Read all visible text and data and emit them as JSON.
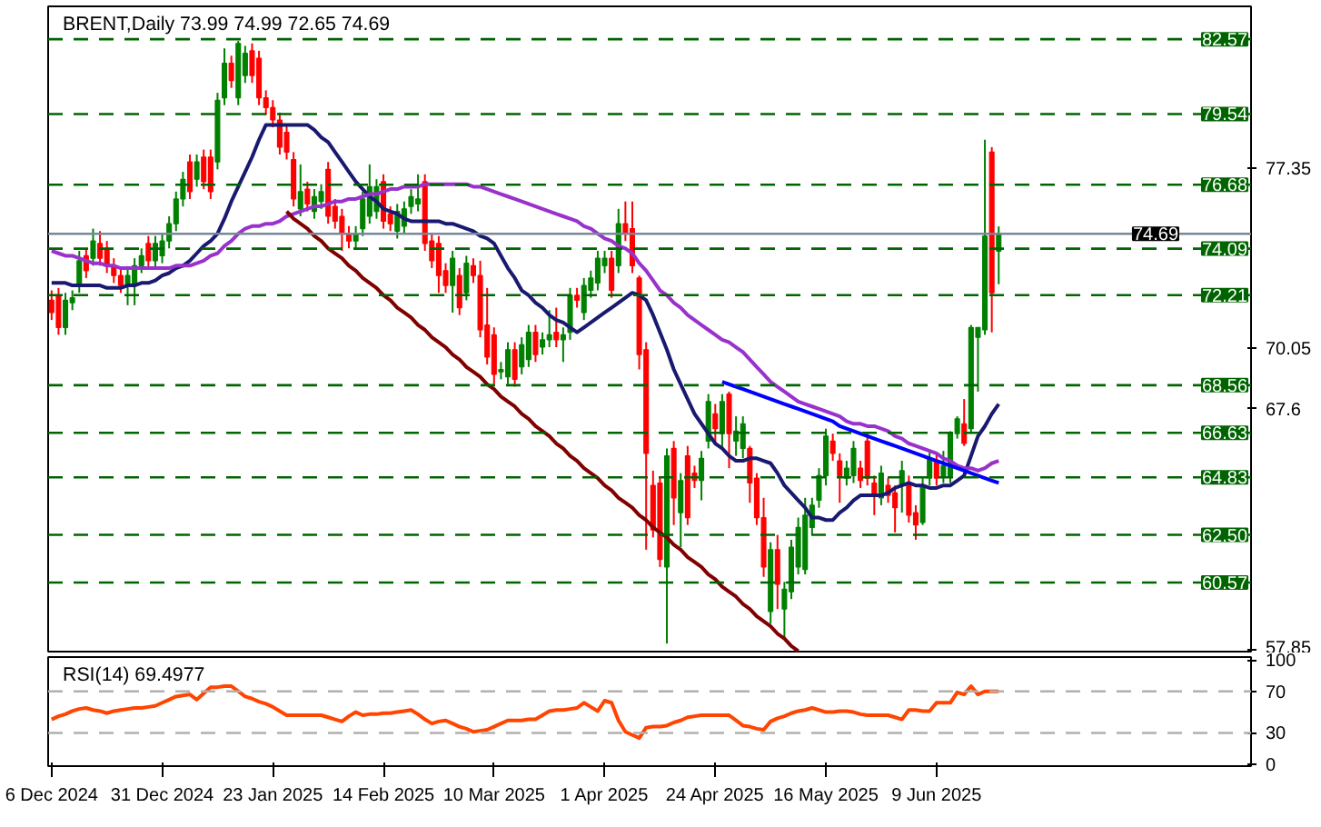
{
  "chart_data": [
    {
      "type": "candlestick",
      "title": "BRENT,Daily  73.99 74.99 72.65 74.69",
      "categories": [
        null,
        null,
        null,
        null,
        null,
        null,
        null,
        null,
        null,
        null,
        null,
        null,
        null,
        null,
        null,
        null,
        null,
        null,
        null,
        null,
        null,
        null,
        null,
        null,
        null,
        null,
        null,
        null,
        null,
        null,
        null,
        null,
        null,
        null,
        null,
        null,
        null,
        null,
        null,
        null,
        null,
        null,
        null,
        null,
        null,
        null,
        null,
        null,
        null,
        null,
        null,
        null,
        null,
        null,
        null,
        null,
        null,
        null,
        null,
        null,
        null,
        null,
        null,
        null,
        null,
        null,
        null,
        null,
        null,
        null,
        null,
        null,
        null,
        null,
        null,
        null,
        null,
        null,
        null,
        null,
        null,
        null,
        null,
        null,
        null,
        null,
        null,
        null,
        null,
        null,
        null,
        null,
        null,
        null,
        null,
        null,
        null,
        null,
        null,
        null,
        null,
        null,
        null,
        null,
        null,
        null,
        null,
        null,
        null,
        null,
        null,
        null,
        null,
        null,
        null,
        null,
        null,
        null,
        null,
        null,
        null,
        null,
        null,
        null,
        null,
        null,
        null,
        null,
        null,
        null,
        null,
        null,
        null,
        null,
        null,
        null,
        null,
        null
      ],
      "ohlc": [
        [
          72.0,
          72.4,
          71.2,
          71.5
        ],
        [
          72.2,
          72.5,
          70.6,
          70.9
        ],
        [
          70.9,
          72.3,
          70.6,
          72.0
        ],
        [
          71.9,
          72.4,
          71.6,
          72.1
        ],
        [
          72.6,
          74.0,
          72.3,
          73.6
        ],
        [
          73.8,
          74.1,
          72.9,
          73.2
        ],
        [
          73.7,
          74.9,
          73.4,
          74.4
        ],
        [
          74.3,
          74.8,
          73.4,
          73.7
        ],
        [
          74.1,
          74.4,
          73.1,
          73.4
        ],
        [
          73.4,
          73.7,
          72.7,
          73.0
        ],
        [
          73.0,
          73.3,
          72.3,
          72.6
        ],
        [
          72.6,
          73.3,
          71.8,
          73.0
        ],
        [
          72.6,
          73.7,
          71.8,
          73.4
        ],
        [
          73.4,
          74.1,
          73.1,
          73.8
        ],
        [
          74.3,
          74.6,
          73.3,
          73.6
        ],
        [
          73.6,
          74.6,
          73.3,
          74.3
        ],
        [
          73.8,
          74.7,
          73.5,
          74.4
        ],
        [
          74.4,
          75.4,
          74.1,
          75.1
        ],
        [
          75.1,
          76.4,
          74.8,
          76.1
        ],
        [
          76.1,
          77.2,
          75.8,
          76.9
        ],
        [
          77.6,
          77.9,
          76.1,
          76.4
        ],
        [
          76.9,
          77.9,
          76.6,
          77.6
        ],
        [
          77.8,
          78.1,
          76.5,
          76.8
        ],
        [
          77.8,
          78.1,
          76.1,
          76.4
        ],
        [
          77.6,
          80.4,
          77.3,
          80.1
        ],
        [
          80.2,
          82.2,
          79.9,
          81.6
        ],
        [
          81.6,
          81.9,
          80.6,
          80.9
        ],
        [
          80.2,
          82.5,
          79.9,
          82.4
        ],
        [
          81.1,
          82.3,
          80.8,
          82.0
        ],
        [
          82.1,
          82.4,
          80.8,
          81.1
        ],
        [
          81.8,
          82.1,
          79.9,
          80.2
        ],
        [
          80.2,
          80.5,
          79.5,
          79.8
        ],
        [
          79.8,
          80.1,
          79.0,
          79.3
        ],
        [
          79.3,
          79.6,
          77.9,
          78.2
        ],
        [
          78.8,
          79.1,
          77.7,
          78.0
        ],
        [
          77.7,
          78.0,
          75.8,
          76.1
        ],
        [
          75.7,
          77.5,
          75.4,
          76.4
        ],
        [
          76.5,
          76.8,
          75.6,
          75.9
        ],
        [
          75.6,
          76.5,
          75.3,
          76.2
        ],
        [
          76.0,
          76.7,
          75.7,
          76.4
        ],
        [
          77.3,
          77.6,
          75.1,
          75.4
        ],
        [
          75.8,
          76.1,
          74.9,
          75.2
        ],
        [
          75.4,
          75.7,
          74.0,
          74.7
        ],
        [
          74.7,
          75.0,
          74.1,
          74.4
        ],
        [
          74.4,
          75.0,
          74.1,
          74.7
        ],
        [
          74.9,
          76.4,
          74.6,
          76.1
        ],
        [
          75.4,
          77.5,
          75.1,
          76.6
        ],
        [
          75.6,
          76.9,
          75.3,
          76.6
        ],
        [
          76.8,
          77.1,
          74.9,
          75.2
        ],
        [
          75.5,
          75.8,
          74.8,
          75.1
        ],
        [
          74.8,
          75.9,
          74.5,
          75.6
        ],
        [
          75.0,
          76.0,
          74.7,
          75.7
        ],
        [
          75.8,
          76.5,
          75.5,
          76.2
        ],
        [
          75.9,
          77.1,
          75.6,
          76.1
        ],
        [
          76.8,
          77.1,
          74.0,
          74.3
        ],
        [
          74.4,
          74.7,
          73.3,
          73.6
        ],
        [
          74.3,
          74.6,
          72.3,
          73.0
        ],
        [
          73.2,
          73.5,
          72.3,
          72.6
        ],
        [
          72.6,
          74.0,
          71.5,
          73.7
        ],
        [
          73.0,
          73.3,
          71.4,
          71.7
        ],
        [
          72.3,
          73.8,
          72.0,
          73.5
        ],
        [
          73.4,
          73.7,
          72.7,
          73.0
        ],
        [
          73.0,
          73.6,
          70.5,
          70.8
        ],
        [
          71.0,
          72.5,
          69.4,
          69.7
        ],
        [
          70.6,
          70.9,
          68.6,
          69.0
        ],
        [
          69.1,
          69.5,
          68.8,
          69.2
        ],
        [
          68.9,
          70.3,
          68.6,
          70.0
        ],
        [
          70.0,
          70.3,
          68.5,
          68.8
        ],
        [
          69.3,
          70.5,
          69.0,
          70.2
        ],
        [
          69.6,
          71.0,
          69.3,
          70.7
        ],
        [
          70.7,
          71.0,
          69.5,
          69.8
        ],
        [
          70.1,
          70.7,
          69.8,
          70.4
        ],
        [
          70.4,
          71.6,
          70.1,
          70.6
        ],
        [
          70.7,
          71.7,
          70.1,
          70.4
        ],
        [
          70.4,
          70.9,
          69.5,
          70.6
        ],
        [
          70.7,
          72.5,
          70.4,
          72.2
        ],
        [
          72.2,
          72.5,
          71.7,
          72.0
        ],
        [
          71.5,
          72.9,
          71.2,
          72.6
        ],
        [
          72.4,
          73.2,
          72.1,
          72.9
        ],
        [
          72.7,
          74.0,
          72.4,
          73.7
        ],
        [
          73.4,
          74.0,
          73.1,
          73.7
        ],
        [
          73.7,
          74.0,
          72.1,
          72.4
        ],
        [
          73.4,
          75.7,
          73.1,
          75.1
        ],
        [
          75.1,
          76.0,
          74.4,
          74.7
        ],
        [
          74.9,
          76.0,
          73.1,
          73.4
        ],
        [
          72.9,
          73.0,
          69.2,
          69.8
        ],
        [
          70.0,
          70.3,
          61.9,
          65.8
        ],
        [
          64.5,
          65.1,
          62.4,
          62.7
        ],
        [
          64.6,
          64.8,
          61.2,
          61.5
        ],
        [
          61.2,
          66.0,
          58.1,
          65.7
        ],
        [
          66.0,
          66.3,
          62.9,
          64.0
        ],
        [
          63.4,
          65.0,
          62.0,
          64.7
        ],
        [
          65.7,
          66.1,
          62.9,
          63.2
        ],
        [
          65.0,
          65.3,
          64.4,
          64.7
        ],
        [
          64.7,
          65.9,
          63.9,
          65.6
        ],
        [
          66.3,
          68.2,
          66.0,
          67.9
        ],
        [
          67.4,
          67.8,
          66.2,
          66.8
        ],
        [
          66.6,
          68.2,
          66.0,
          67.9
        ],
        [
          68.2,
          68.3,
          65.2,
          66.6
        ],
        [
          66.3,
          67.3,
          65.7,
          66.7
        ],
        [
          66.0,
          67.3,
          65.6,
          67.0
        ],
        [
          66.0,
          66.1,
          63.8,
          64.6
        ],
        [
          64.8,
          65.0,
          62.9,
          63.2
        ],
        [
          63.2,
          64.0,
          60.8,
          61.2
        ],
        [
          59.4,
          62.2,
          58.9,
          61.9
        ],
        [
          61.9,
          62.5,
          59.5,
          60.5
        ],
        [
          59.5,
          60.6,
          58.3,
          60.3
        ],
        [
          60.2,
          62.3,
          59.9,
          62.0
        ],
        [
          61.2,
          63.2,
          60.9,
          62.8
        ],
        [
          61.1,
          64.0,
          60.9,
          63.3
        ],
        [
          62.8,
          64.0,
          62.5,
          63.7
        ],
        [
          63.9,
          65.2,
          63.6,
          64.9
        ],
        [
          64.9,
          66.8,
          64.5,
          66.5
        ],
        [
          66.3,
          66.6,
          65.5,
          65.8
        ],
        [
          65.5,
          65.8,
          63.8,
          64.9
        ],
        [
          64.8,
          65.5,
          64.5,
          65.2
        ],
        [
          64.9,
          66.3,
          64.6,
          66.0
        ],
        [
          65.2,
          65.5,
          64.4,
          64.7
        ],
        [
          66.3,
          66.6,
          64.5,
          64.8
        ],
        [
          64.6,
          64.9,
          63.3,
          64.1
        ],
        [
          64.0,
          65.3,
          63.7,
          65.0
        ],
        [
          64.5,
          64.8,
          63.8,
          64.1
        ],
        [
          64.2,
          64.5,
          62.6,
          63.6
        ],
        [
          64.5,
          65.5,
          63.4,
          65.1
        ],
        [
          64.6,
          64.9,
          63.0,
          63.3
        ],
        [
          63.4,
          63.7,
          62.3,
          62.9
        ],
        [
          63.0,
          64.8,
          62.9,
          64.5
        ],
        [
          64.8,
          65.9,
          64.5,
          65.6
        ],
        [
          65.5,
          65.8,
          64.5,
          64.8
        ],
        [
          64.9,
          65.9,
          64.6,
          65.3
        ],
        [
          64.9,
          66.7,
          64.6,
          66.6
        ],
        [
          66.6,
          67.3,
          66.4,
          67.2
        ],
        [
          67.0,
          68.0,
          66.1,
          66.2
        ],
        [
          66.8,
          71.0,
          66.6,
          70.9
        ],
        [
          70.5,
          70.9,
          68.3,
          70.9
        ],
        [
          70.8,
          78.5,
          70.6,
          74.6
        ],
        [
          78.0,
          78.2,
          70.7,
          72.3
        ],
        [
          73.99,
          74.99,
          72.65,
          74.69
        ]
      ],
      "series": [
        {
          "type": "line",
          "color": "#191970",
          "values": [
            72.7,
            72.7,
            72.7,
            72.6,
            72.6,
            72.6,
            72.6,
            72.6,
            72.5,
            72.5,
            72.5,
            72.6,
            72.6,
            72.7,
            72.7,
            72.8,
            73.0,
            73.1,
            73.3,
            73.4,
            73.6,
            73.9,
            74.2,
            74.4,
            74.7,
            75.3,
            76.0,
            76.6,
            77.2,
            77.8,
            78.5,
            79.1,
            79.1,
            79.1,
            79.1,
            79.1,
            79.1,
            79.1,
            78.9,
            78.6,
            78.4,
            78.0,
            77.6,
            77.2,
            76.8,
            76.5,
            76.2,
            76.0,
            75.7,
            75.6,
            75.5,
            75.3,
            75.2,
            75.2,
            75.2,
            75.2,
            75.2,
            75.1,
            75.1,
            75.0,
            74.9,
            74.8,
            74.6,
            74.5,
            74.3,
            73.8,
            73.3,
            72.9,
            72.4,
            72.2,
            71.9,
            71.7,
            71.4,
            71.2,
            71.1,
            70.9,
            70.7,
            70.9,
            71.1,
            71.3,
            71.5,
            71.7,
            71.9,
            72.1,
            72.3,
            72.2,
            72.0,
            71.4,
            70.7,
            70.0,
            69.2,
            68.6,
            68.0,
            67.4,
            67.0,
            66.6,
            66.2,
            66.0,
            65.7,
            65.5,
            65.5,
            65.6,
            65.6,
            65.5,
            65.4,
            65.0,
            64.5,
            64.2,
            63.9,
            63.6,
            63.2,
            63.2,
            63.1,
            63.1,
            63.4,
            63.6,
            63.9,
            64.1,
            64.1,
            64.1,
            64.1,
            64.2,
            64.4,
            64.5,
            64.6,
            64.5,
            64.5,
            64.4,
            64.4,
            64.5,
            64.5,
            64.7,
            64.9,
            65.7,
            66.5,
            66.9,
            67.4,
            67.8
          ]
        },
        {
          "type": "line",
          "color": "#9932cc",
          "values": [
            74.0,
            73.9,
            73.8,
            73.8,
            73.7,
            73.6,
            73.5,
            73.5,
            73.4,
            73.4,
            73.3,
            73.3,
            73.3,
            73.3,
            73.3,
            73.3,
            73.3,
            73.3,
            73.4,
            73.4,
            73.4,
            73.5,
            73.6,
            73.8,
            73.9,
            74.2,
            74.4,
            74.7,
            74.9,
            75.0,
            75.0,
            75.1,
            75.1,
            75.2,
            75.4,
            75.5,
            75.6,
            75.7,
            75.8,
            75.8,
            75.9,
            76.0,
            76.0,
            76.1,
            76.1,
            76.2,
            76.3,
            76.3,
            76.4,
            76.5,
            76.5,
            76.6,
            76.6,
            76.6,
            76.7,
            76.7,
            76.7,
            76.7,
            76.7,
            76.7,
            76.7,
            76.6,
            76.6,
            76.5,
            76.4,
            76.3,
            76.2,
            76.1,
            76.0,
            75.9,
            75.8,
            75.7,
            75.6,
            75.5,
            75.4,
            75.3,
            75.2,
            75.0,
            74.9,
            74.7,
            74.5,
            74.4,
            74.2,
            74.1,
            73.9,
            73.5,
            73.2,
            72.8,
            72.4,
            72.2,
            71.9,
            71.7,
            71.4,
            71.2,
            71.0,
            70.8,
            70.6,
            70.4,
            70.3,
            70.1,
            69.9,
            69.6,
            69.3,
            69.0,
            68.7,
            68.5,
            68.3,
            68.1,
            67.9,
            67.8,
            67.7,
            67.6,
            67.5,
            67.4,
            67.3,
            67.1,
            67.0,
            67.0,
            66.9,
            66.9,
            66.8,
            66.7,
            66.5,
            66.4,
            66.2,
            66.1,
            66.0,
            65.9,
            65.8,
            65.6,
            65.5,
            65.3,
            65.2,
            65.2,
            65.1,
            65.2,
            65.4,
            65.5
          ]
        },
        {
          "type": "line",
          "color": "#800000",
          "values": [
            null,
            null,
            null,
            null,
            null,
            null,
            null,
            null,
            null,
            null,
            null,
            null,
            null,
            null,
            null,
            null,
            null,
            null,
            null,
            null,
            null,
            null,
            null,
            null,
            null,
            null,
            null,
            null,
            null,
            null,
            null,
            null,
            null,
            null,
            75.6,
            75.3,
            75.1,
            74.9,
            74.6,
            74.4,
            74.1,
            73.9,
            73.7,
            73.4,
            73.2,
            72.9,
            72.7,
            72.5,
            72.2,
            72.0,
            71.7,
            71.5,
            71.3,
            71.0,
            70.8,
            70.5,
            70.3,
            70.1,
            69.8,
            69.6,
            69.3,
            69.1,
            68.9,
            68.6,
            68.4,
            68.1,
            67.9,
            67.7,
            67.4,
            67.2,
            66.9,
            66.7,
            66.5,
            66.2,
            66.0,
            65.7,
            65.5,
            65.2,
            65.0,
            64.8,
            64.5,
            64.3,
            64.0,
            63.8,
            63.6,
            63.3,
            63.1,
            62.8,
            62.6,
            62.4,
            62.1,
            61.9,
            61.6,
            61.4,
            61.2,
            60.9,
            60.7,
            60.4,
            60.2,
            60.0,
            59.7,
            59.5,
            59.2,
            59.0,
            58.8,
            58.5,
            58.3,
            58.0,
            57.8,
            null,
            null,
            null,
            null,
            null,
            null,
            null,
            null,
            null,
            null,
            null,
            null,
            null,
            null,
            null,
            null,
            null,
            null,
            null,
            null,
            null,
            null,
            null,
            null,
            null,
            null,
            null,
            null,
            null
          ]
        },
        {
          "type": "line",
          "color": "#0000ff",
          "values": [
            null,
            null,
            null,
            null,
            null,
            null,
            null,
            null,
            null,
            null,
            null,
            null,
            null,
            null,
            null,
            null,
            null,
            null,
            null,
            null,
            null,
            null,
            null,
            null,
            null,
            null,
            null,
            null,
            null,
            null,
            null,
            null,
            null,
            null,
            null,
            null,
            null,
            null,
            null,
            null,
            null,
            null,
            null,
            null,
            null,
            null,
            null,
            null,
            null,
            null,
            null,
            null,
            null,
            null,
            null,
            null,
            null,
            null,
            null,
            null,
            null,
            null,
            null,
            null,
            null,
            null,
            null,
            null,
            null,
            null,
            null,
            null,
            null,
            null,
            null,
            null,
            null,
            null,
            null,
            null,
            null,
            null,
            null,
            null,
            null,
            null,
            null,
            null,
            null,
            null,
            null,
            null,
            null,
            null,
            null,
            null,
            null,
            68.7,
            68.6,
            68.5,
            68.4,
            68.3,
            68.2,
            68.1,
            68.0,
            67.9,
            67.8,
            67.7,
            67.6,
            67.5,
            67.4,
            67.3,
            67.2,
            67.1,
            66.9,
            66.8,
            66.7,
            66.6,
            66.5,
            66.4,
            66.3,
            66.2,
            66.1,
            66.0,
            65.9,
            65.8,
            65.7,
            65.6,
            65.5,
            65.4,
            65.3,
            65.2,
            65.1,
            65.0,
            64.9,
            64.8,
            64.7,
            64.6
          ]
        }
      ],
      "ylim": [
        57.7,
        83.9
      ],
      "yticks": [
        57.85,
        67.6,
        70.05,
        77.35
      ],
      "tick_labels": "y",
      "ref_lines": [
        {
          "axis": "y",
          "value": 82.57,
          "label": "82.57",
          "color": "#006400",
          "line_style": "dashed"
        },
        {
          "axis": "y",
          "value": 79.54,
          "label": "79.54",
          "color": "#006400",
          "line_style": "dashed"
        },
        {
          "axis": "y",
          "value": 76.68,
          "label": "76.68",
          "color": "#006400",
          "line_style": "dashed"
        },
        {
          "axis": "y",
          "value": 74.69,
          "label": "74.69",
          "color": "#778899",
          "line_style": "solid"
        },
        {
          "axis": "y",
          "value": 74.09,
          "label": "74.09",
          "color": "#006400",
          "line_style": "dashed"
        },
        {
          "axis": "y",
          "value": 72.21,
          "label": "72.21",
          "color": "#006400",
          "line_style": "dashed"
        },
        {
          "axis": "y",
          "value": 68.56,
          "label": "68.56",
          "color": "#006400",
          "line_style": "dashed"
        },
        {
          "axis": "y",
          "value": 66.63,
          "label": "66.63",
          "color": "#006400",
          "line_style": "dashed"
        },
        {
          "axis": "y",
          "value": 64.83,
          "label": "64.83",
          "color": "#006400",
          "line_style": "dashed"
        },
        {
          "axis": "y",
          "value": 62.5,
          "label": "62.50",
          "color": "#006400",
          "line_style": "dashed"
        },
        {
          "axis": "y",
          "value": 60.57,
          "label": "60.57",
          "color": "#006400",
          "line_style": "dashed"
        }
      ]
    },
    {
      "type": "line",
      "title": "RSI(14) 69.4977",
      "categories": [
        "6 Dec 2024",
        null,
        null,
        null,
        null,
        null,
        null,
        null,
        null,
        null,
        null,
        null,
        null,
        null,
        null,
        null,
        "31 Dec 2024",
        null,
        null,
        null,
        null,
        null,
        null,
        null,
        null,
        null,
        null,
        null,
        null,
        null,
        null,
        null,
        "23 Jan 2025",
        null,
        null,
        null,
        null,
        null,
        null,
        null,
        null,
        null,
        null,
        null,
        null,
        null,
        null,
        null,
        "14 Feb 2025",
        null,
        null,
        null,
        null,
        null,
        null,
        null,
        null,
        null,
        null,
        null,
        null,
        null,
        null,
        null,
        "10 Mar 2025",
        null,
        null,
        null,
        null,
        null,
        null,
        null,
        null,
        null,
        null,
        null,
        null,
        null,
        null,
        null,
        "1 Apr 2025",
        null,
        null,
        null,
        null,
        null,
        null,
        null,
        null,
        null,
        null,
        null,
        null,
        null,
        null,
        null,
        "24 Apr 2025",
        null,
        null,
        null,
        null,
        null,
        null,
        null,
        null,
        null,
        null,
        null,
        null,
        null,
        null,
        null,
        "16 May 2025",
        null,
        null,
        null,
        null,
        null,
        null,
        null,
        null,
        null,
        null,
        null,
        null,
        null,
        null,
        null,
        "9 Jun 2025",
        null,
        null,
        null,
        null,
        null,
        null,
        null,
        null,
        null
      ],
      "series": [
        {
          "color": "#ff4500",
          "values": [
            43,
            46,
            48,
            51,
            53,
            54,
            52,
            51,
            49,
            51,
            52,
            53,
            54,
            54,
            55,
            56,
            59,
            62,
            65,
            66,
            67,
            62,
            68,
            74,
            74,
            75,
            75,
            70,
            65,
            63,
            60,
            58,
            55,
            51,
            47,
            47,
            47,
            47,
            47,
            47,
            45,
            43,
            41,
            46,
            50,
            47,
            48,
            48,
            49,
            49,
            50,
            51,
            52,
            48,
            43,
            39,
            41,
            42,
            39,
            36,
            34,
            31,
            32,
            33,
            36,
            39,
            42,
            42,
            42,
            43,
            43,
            47,
            51,
            52,
            52,
            53,
            54,
            59,
            55,
            51,
            61,
            59,
            42,
            31,
            28,
            25,
            35,
            36,
            36,
            37,
            40,
            42,
            45,
            46,
            47,
            47,
            47,
            47,
            47,
            42,
            37,
            36,
            34,
            33,
            41,
            44,
            46,
            49,
            51,
            52,
            54,
            52,
            50,
            50,
            51,
            51,
            50,
            48,
            47,
            47,
            47,
            47,
            45,
            43,
            52,
            52,
            51,
            51,
            59,
            59,
            59,
            69,
            67,
            75,
            67,
            70,
            70,
            70
          ]
        }
      ],
      "ylim": [
        -2,
        103
      ],
      "yticks": [
        0,
        30,
        70,
        100
      ],
      "ref_lines": [
        {
          "axis": "y",
          "value": 70,
          "color": "#b0b0b0",
          "line_style": "dashed"
        },
        {
          "axis": "y",
          "value": 30,
          "color": "#b0b0b0",
          "line_style": "dashed"
        }
      ]
    }
  ]
}
